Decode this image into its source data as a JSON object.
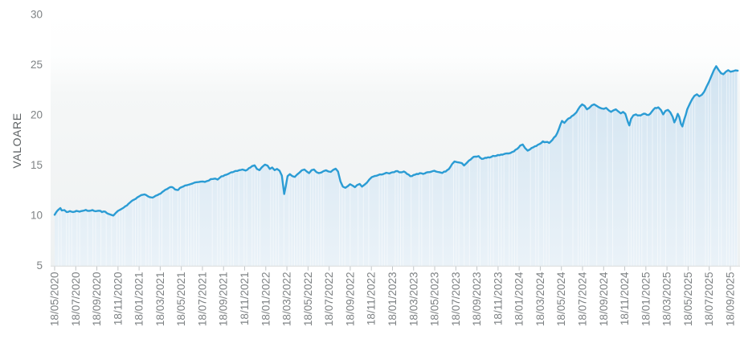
{
  "chart_data": {
    "type": "area",
    "title": "",
    "ylabel": "VALOARE",
    "xlabel": "",
    "ylim": [
      5,
      30
    ],
    "y_ticks": [
      30,
      25,
      20,
      15,
      10,
      5
    ],
    "grid": "off",
    "legend": "none",
    "x_tick_labels": [
      "18/05/2020",
      "18/07/2020",
      "18/09/2020",
      "18/11/2020",
      "18/01/2021",
      "18/03/2021",
      "18/05/2021",
      "18/07/2021",
      "18/09/2021",
      "18/11/2021",
      "18/01/2022",
      "18/03/2022",
      "18/05/2022",
      "18/07/2022",
      "18/09/2022",
      "18/11/2022",
      "18/01/2023",
      "18/03/2023",
      "18/05/2023",
      "18/07/2023",
      "18/09/2023",
      "18/11/2023",
      "18/01/2024",
      "18/03/2024",
      "18/05/2024",
      "18/07/2024",
      "18/09/2024",
      "18/11/2024",
      "18/01/2025",
      "18/03/2025",
      "18/05/2025",
      "18/07/2025",
      "18/09/2025"
    ],
    "series": [
      {
        "name": "VALOARE",
        "x_unit": "x_tick_index",
        "points": [
          [
            0,
            10.05
          ],
          [
            0.08,
            10.32
          ],
          [
            0.15,
            10.5
          ],
          [
            0.27,
            10.72
          ],
          [
            0.34,
            10.48
          ],
          [
            0.46,
            10.52
          ],
          [
            0.57,
            10.32
          ],
          [
            0.72,
            10.42
          ],
          [
            0.87,
            10.33
          ],
          [
            1.03,
            10.44
          ],
          [
            1.18,
            10.36
          ],
          [
            1.33,
            10.45
          ],
          [
            1.48,
            10.54
          ],
          [
            1.63,
            10.44
          ],
          [
            1.79,
            10.52
          ],
          [
            1.94,
            10.4
          ],
          [
            2.09,
            10.46
          ],
          [
            2.24,
            10.32
          ],
          [
            2.4,
            10.35
          ],
          [
            2.55,
            10.14
          ],
          [
            2.66,
            10.06
          ],
          [
            2.78,
            9.98
          ],
          [
            2.89,
            10.22
          ],
          [
            3,
            10.44
          ],
          [
            3.12,
            10.58
          ],
          [
            3.27,
            10.76
          ],
          [
            3.42,
            10.98
          ],
          [
            3.5,
            11.15
          ],
          [
            3.61,
            11.35
          ],
          [
            3.76,
            11.55
          ],
          [
            3.91,
            11.78
          ],
          [
            4.03,
            11.92
          ],
          [
            4.18,
            12.05
          ],
          [
            4.33,
            12.02
          ],
          [
            4.49,
            11.82
          ],
          [
            4.64,
            11.76
          ],
          [
            4.79,
            11.95
          ],
          [
            4.94,
            12.1
          ],
          [
            5.1,
            12.32
          ],
          [
            5.25,
            12.55
          ],
          [
            5.4,
            12.72
          ],
          [
            5.55,
            12.82
          ],
          [
            5.7,
            12.58
          ],
          [
            5.85,
            12.52
          ],
          [
            6.01,
            12.8
          ],
          [
            6.16,
            12.95
          ],
          [
            6.35,
            13.05
          ],
          [
            6.54,
            13.18
          ],
          [
            6.73,
            13.3
          ],
          [
            6.92,
            13.35
          ],
          [
            7.11,
            13.32
          ],
          [
            7.3,
            13.46
          ],
          [
            7.49,
            13.62
          ],
          [
            7.6,
            13.66
          ],
          [
            7.72,
            13.56
          ],
          [
            7.83,
            13.76
          ],
          [
            7.98,
            13.9
          ],
          [
            8.14,
            14.05
          ],
          [
            8.29,
            14.2
          ],
          [
            8.44,
            14.3
          ],
          [
            8.56,
            14.42
          ],
          [
            8.75,
            14.5
          ],
          [
            8.9,
            14.56
          ],
          [
            9.05,
            14.46
          ],
          [
            9.2,
            14.7
          ],
          [
            9.35,
            14.9
          ],
          [
            9.47,
            14.98
          ],
          [
            9.58,
            14.62
          ],
          [
            9.7,
            14.5
          ],
          [
            9.81,
            14.78
          ],
          [
            9.96,
            15.05
          ],
          [
            10.08,
            14.95
          ],
          [
            10.19,
            14.62
          ],
          [
            10.3,
            14.76
          ],
          [
            10.42,
            14.5
          ],
          [
            10.53,
            14.62
          ],
          [
            10.65,
            14.44
          ],
          [
            10.76,
            13.95
          ],
          [
            10.87,
            12.12
          ],
          [
            10.95,
            12.95
          ],
          [
            11.03,
            13.9
          ],
          [
            11.14,
            14.1
          ],
          [
            11.26,
            13.9
          ],
          [
            11.37,
            13.82
          ],
          [
            11.48,
            14.06
          ],
          [
            11.6,
            14.26
          ],
          [
            11.71,
            14.48
          ],
          [
            11.83,
            14.56
          ],
          [
            11.94,
            14.36
          ],
          [
            12.05,
            14.2
          ],
          [
            12.17,
            14.5
          ],
          [
            12.28,
            14.56
          ],
          [
            12.4,
            14.3
          ],
          [
            12.51,
            14.2
          ],
          [
            12.62,
            14.26
          ],
          [
            12.74,
            14.4
          ],
          [
            12.85,
            14.48
          ],
          [
            12.97,
            14.36
          ],
          [
            13.08,
            14.32
          ],
          [
            13.19,
            14.52
          ],
          [
            13.31,
            14.64
          ],
          [
            13.42,
            14.36
          ],
          [
            13.54,
            13.36
          ],
          [
            13.65,
            12.86
          ],
          [
            13.77,
            12.74
          ],
          [
            13.88,
            12.9
          ],
          [
            13.99,
            13.1
          ],
          [
            14.11,
            12.96
          ],
          [
            14.22,
            12.8
          ],
          [
            14.33,
            13.02
          ],
          [
            14.45,
            13.12
          ],
          [
            14.56,
            12.86
          ],
          [
            14.68,
            13.06
          ],
          [
            14.79,
            13.26
          ],
          [
            14.9,
            13.56
          ],
          [
            15.02,
            13.8
          ],
          [
            15.17,
            13.92
          ],
          [
            15.32,
            14
          ],
          [
            15.48,
            14.06
          ],
          [
            15.63,
            14.16
          ],
          [
            15.78,
            14.2
          ],
          [
            15.93,
            14.24
          ],
          [
            16.08,
            14.3
          ],
          [
            16.24,
            14.4
          ],
          [
            16.39,
            14.28
          ],
          [
            16.54,
            14.36
          ],
          [
            16.69,
            14.12
          ],
          [
            16.84,
            13.9
          ],
          [
            17,
            14.02
          ],
          [
            17.15,
            14.12
          ],
          [
            17.3,
            14.2
          ],
          [
            17.45,
            14.12
          ],
          [
            17.6,
            14.26
          ],
          [
            17.76,
            14.3
          ],
          [
            17.91,
            14.4
          ],
          [
            18.06,
            14.36
          ],
          [
            18.21,
            14.3
          ],
          [
            18.36,
            14.22
          ],
          [
            18.52,
            14.36
          ],
          [
            18.67,
            14.6
          ],
          [
            18.82,
            15.1
          ],
          [
            18.94,
            15.36
          ],
          [
            19.05,
            15.3
          ],
          [
            19.16,
            15.26
          ],
          [
            19.28,
            15.2
          ],
          [
            19.39,
            14.96
          ],
          [
            19.51,
            15.2
          ],
          [
            19.62,
            15.45
          ],
          [
            19.77,
            15.7
          ],
          [
            19.92,
            15.85
          ],
          [
            20.08,
            15.9
          ],
          [
            20.23,
            15.62
          ],
          [
            20.38,
            15.72
          ],
          [
            20.53,
            15.78
          ],
          [
            20.68,
            15.82
          ],
          [
            20.84,
            15.9
          ],
          [
            20.99,
            16
          ],
          [
            21.14,
            16.05
          ],
          [
            21.29,
            16.1
          ],
          [
            21.44,
            16.16
          ],
          [
            21.6,
            16.22
          ],
          [
            21.75,
            16.36
          ],
          [
            21.9,
            16.6
          ],
          [
            22.05,
            16.95
          ],
          [
            22.17,
            17.05
          ],
          [
            22.28,
            16.7
          ],
          [
            22.4,
            16.44
          ],
          [
            22.51,
            16.56
          ],
          [
            22.66,
            16.76
          ],
          [
            22.81,
            16.9
          ],
          [
            22.97,
            17.1
          ],
          [
            23.12,
            17.36
          ],
          [
            23.27,
            17.3
          ],
          [
            23.42,
            17.2
          ],
          [
            23.57,
            17.5
          ],
          [
            23.73,
            17.9
          ],
          [
            23.88,
            18.6
          ],
          [
            24.03,
            19.4
          ],
          [
            24.14,
            19.2
          ],
          [
            24.26,
            19.5
          ],
          [
            24.41,
            19.7
          ],
          [
            24.56,
            19.95
          ],
          [
            24.71,
            20.25
          ],
          [
            24.87,
            20.8
          ],
          [
            24.98,
            21.05
          ],
          [
            25.1,
            20.9
          ],
          [
            25.21,
            20.55
          ],
          [
            25.32,
            20.7
          ],
          [
            25.44,
            20.95
          ],
          [
            25.55,
            21.05
          ],
          [
            25.67,
            20.9
          ],
          [
            25.78,
            20.75
          ],
          [
            25.89,
            20.65
          ],
          [
            26.01,
            20.6
          ],
          [
            26.12,
            20.7
          ],
          [
            26.24,
            20.45
          ],
          [
            26.35,
            20.3
          ],
          [
            26.46,
            20.45
          ],
          [
            26.58,
            20.55
          ],
          [
            26.69,
            20.35
          ],
          [
            26.81,
            20.15
          ],
          [
            26.92,
            20.3
          ],
          [
            27.03,
            20.1
          ],
          [
            27.15,
            19.3
          ],
          [
            27.22,
            18.95
          ],
          [
            27.3,
            19.6
          ],
          [
            27.41,
            19.95
          ],
          [
            27.53,
            20.05
          ],
          [
            27.68,
            19.95
          ],
          [
            27.83,
            20.05
          ],
          [
            27.98,
            20.1
          ],
          [
            28.14,
            20
          ],
          [
            28.29,
            20.35
          ],
          [
            28.44,
            20.7
          ],
          [
            28.59,
            20.75
          ],
          [
            28.71,
            20.5
          ],
          [
            28.82,
            20.05
          ],
          [
            28.93,
            20.4
          ],
          [
            29.05,
            20.5
          ],
          [
            29.16,
            20.25
          ],
          [
            29.27,
            19.8
          ],
          [
            29.35,
            19.25
          ],
          [
            29.43,
            19.6
          ],
          [
            29.51,
            20.1
          ],
          [
            29.58,
            19.8
          ],
          [
            29.66,
            19.1
          ],
          [
            29.73,
            18.85
          ],
          [
            29.81,
            19.5
          ],
          [
            29.89,
            20
          ],
          [
            29.96,
            20.55
          ],
          [
            30.08,
            21.1
          ],
          [
            30.19,
            21.55
          ],
          [
            30.3,
            21.9
          ],
          [
            30.42,
            22.05
          ],
          [
            30.53,
            21.85
          ],
          [
            30.65,
            22
          ],
          [
            30.76,
            22.3
          ],
          [
            30.87,
            22.8
          ],
          [
            30.99,
            23.3
          ],
          [
            31.1,
            23.85
          ],
          [
            31.22,
            24.45
          ],
          [
            31.33,
            24.85
          ],
          [
            31.44,
            24.5
          ],
          [
            31.56,
            24.15
          ],
          [
            31.67,
            24.05
          ],
          [
            31.79,
            24.3
          ],
          [
            31.9,
            24.45
          ],
          [
            32.01,
            24.3
          ],
          [
            32.13,
            24.35
          ],
          [
            32.35,
            24.4
          ]
        ]
      }
    ],
    "colors": {
      "line": "#2b9cd4",
      "area_top": "#d2e4f1",
      "area_bottom": "#eaf2f8",
      "stripe": "#ffffff",
      "plot_bg_top": "#ffffff",
      "plot_bg_bottom": "#eef1f2",
      "axis_line": "#d8dbdc",
      "tick_mark": "#bfc3c5",
      "tick_label": "#7e8284",
      "axis_title": "#5f6365"
    }
  }
}
